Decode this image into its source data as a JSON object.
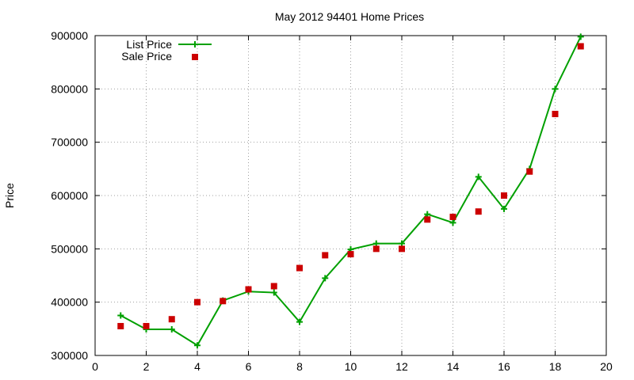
{
  "chart_data": {
    "type": "line",
    "title": "May 2012 94401 Home Prices",
    "xlabel": "",
    "ylabel": "Price",
    "xlim": [
      0,
      20
    ],
    "ylim": [
      300000,
      900000
    ],
    "x_ticks": [
      0,
      2,
      4,
      6,
      8,
      10,
      12,
      14,
      16,
      18,
      20
    ],
    "y_ticks": [
      300000,
      400000,
      500000,
      600000,
      700000,
      800000,
      900000
    ],
    "grid": true,
    "legend_position": "top-left",
    "series": [
      {
        "name": "List Price",
        "style": "line+plus-markers",
        "color": "#00a000",
        "x": [
          1,
          2,
          3,
          4,
          5,
          6,
          7,
          8,
          9,
          10,
          11,
          12,
          13,
          14,
          15,
          16,
          17,
          18,
          19
        ],
        "values": [
          375000,
          349000,
          349000,
          319000,
          403000,
          420000,
          418000,
          363000,
          445000,
          499000,
          510000,
          510000,
          565000,
          549000,
          635000,
          575000,
          650000,
          800000,
          898000
        ]
      },
      {
        "name": "Sale Price",
        "style": "square-markers",
        "color": "#cc0000",
        "x": [
          1,
          2,
          3,
          4,
          5,
          6,
          7,
          8,
          9,
          10,
          11,
          12,
          13,
          14,
          15,
          16,
          17,
          18,
          19
        ],
        "values": [
          355000,
          355000,
          368000,
          400000,
          402000,
          424000,
          430000,
          464000,
          488000,
          490000,
          500000,
          500000,
          555000,
          560000,
          570000,
          600000,
          645000,
          753000,
          880000
        ]
      }
    ]
  }
}
